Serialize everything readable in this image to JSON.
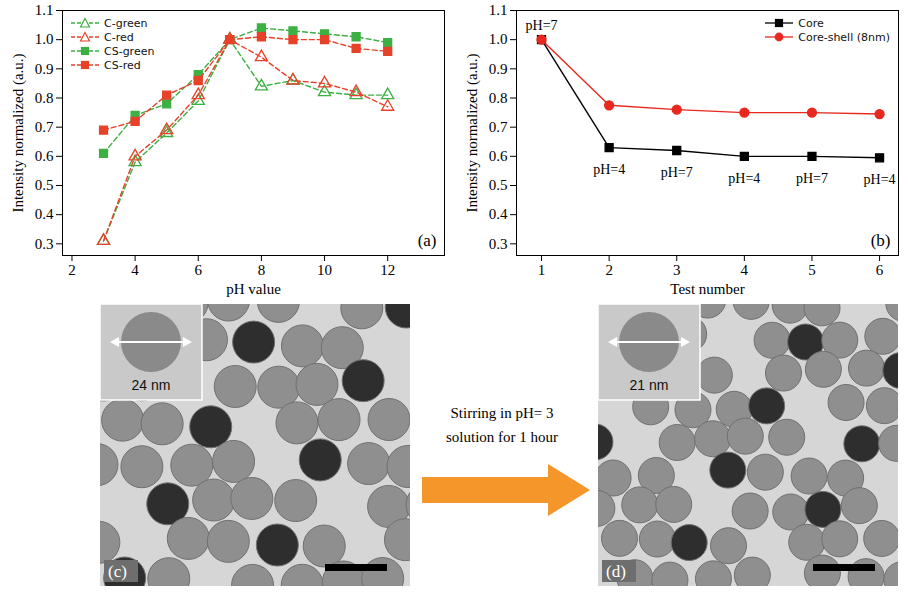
{
  "chart_data": [
    {
      "type": "line",
      "panel": "(a)",
      "x_label": "pH value",
      "y_label": "Intensity normalized (a.u.)",
      "x": [
        3,
        4,
        5,
        6,
        7,
        8,
        9,
        10,
        11,
        12
      ],
      "series": [
        {
          "name": "C-green",
          "color": "#3cb043",
          "marker": "triangle-open",
          "line_style": "dashed",
          "values": [
            0.31,
            0.58,
            0.68,
            0.79,
            1.0,
            0.84,
            0.86,
            0.82,
            0.81,
            0.81
          ]
        },
        {
          "name": "C-red",
          "color": "#e8412a",
          "marker": "triangle-open",
          "line_style": "dashed",
          "values": [
            0.31,
            0.6,
            0.69,
            0.81,
            1.0,
            0.94,
            0.86,
            0.85,
            0.82,
            0.77
          ]
        },
        {
          "name": "CS-green",
          "color": "#3cb043",
          "marker": "square",
          "line_style": "dashed",
          "values": [
            0.61,
            0.74,
            0.78,
            0.88,
            1.0,
            1.04,
            1.03,
            1.02,
            1.01,
            0.99
          ]
        },
        {
          "name": "CS-red",
          "color": "#e8412a",
          "marker": "square",
          "line_style": "dashed",
          "values": [
            0.69,
            0.72,
            0.81,
            0.86,
            1.0,
            1.01,
            1.0,
            1.0,
            0.97,
            0.96
          ]
        }
      ],
      "xlim": [
        1.7,
        13.8
      ],
      "xticks": [
        2,
        4,
        6,
        8,
        10,
        12
      ],
      "ylim": [
        0.26,
        1.1
      ],
      "yticks": [
        0.3,
        0.4,
        0.5,
        0.6,
        0.7,
        0.8,
        0.9,
        {
          "value": 1,
          "label": "1.0"
        },
        1.1
      ],
      "legend": "top-left"
    },
    {
      "type": "line",
      "panel": "(b)",
      "x_label": "Test number",
      "y_label": "Intensity normalized (a.u.)",
      "x": [
        1,
        2,
        3,
        4,
        5,
        6
      ],
      "series": [
        {
          "name": "Core",
          "color": "#000000",
          "marker": "square",
          "line_style": "solid",
          "values": [
            1.0,
            0.63,
            0.62,
            0.6,
            0.6,
            0.595
          ]
        },
        {
          "name": "Core-shell (8nm)",
          "color": "#e8281e",
          "marker": "circle",
          "line_style": "solid",
          "values": [
            1.0,
            0.775,
            0.76,
            0.75,
            0.75,
            0.745
          ]
        }
      ],
      "annotations": [
        {
          "text": "pH=7",
          "x": 1
        },
        {
          "text": "pH=4",
          "x": 2
        },
        {
          "text": "pH=7",
          "x": 3
        },
        {
          "text": "pH=4",
          "x": 4
        },
        {
          "text": "pH=7",
          "x": 5
        },
        {
          "text": "pH=4",
          "x": 6
        }
      ],
      "xlim": [
        0.63,
        6.28
      ],
      "xticks": [
        1,
        2,
        3,
        4,
        5,
        6
      ],
      "ylim": [
        0.26,
        1.1
      ],
      "yticks": [
        0.3,
        0.4,
        0.5,
        0.6,
        0.7,
        0.8,
        0.9,
        {
          "value": 1,
          "label": "1.0"
        },
        1.1
      ],
      "legend": "top-right"
    }
  ],
  "images": [
    {
      "panel": "(c)",
      "inset_label": "24 nm"
    },
    {
      "panel": "(d)",
      "inset_label": "21 nm"
    }
  ],
  "arrow_text": "Stirring in pH= 3 solution for 1 hour"
}
